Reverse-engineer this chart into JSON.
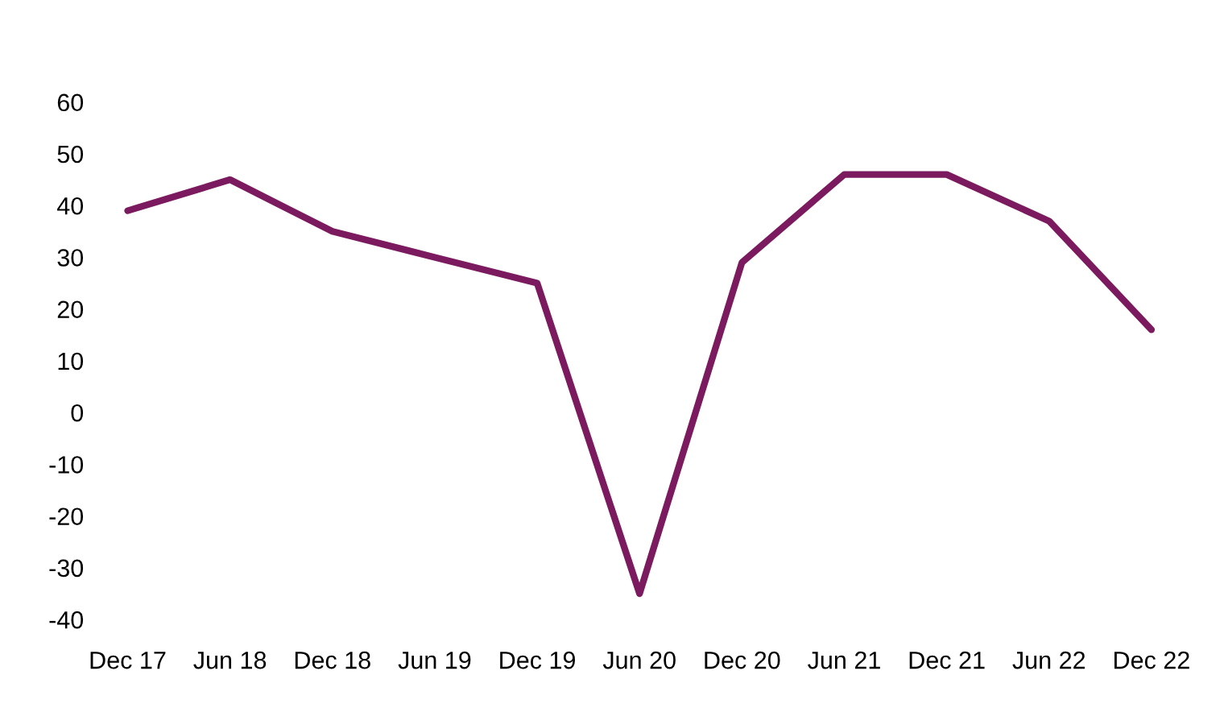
{
  "chart_data": {
    "type": "line",
    "categories": [
      "Dec 17",
      "Jun 18",
      "Dec 18",
      "Jun 19",
      "Dec 19",
      "Jun 20",
      "Dec 20",
      "Jun 21",
      "Dec 21",
      "Jun 22",
      "Dec 22"
    ],
    "series": [
      {
        "color": "#7b1a5e",
        "values": [
          39,
          45,
          35,
          30,
          25,
          -35,
          29,
          46,
          46,
          37,
          16
        ]
      }
    ],
    "ylim": [
      -40,
      60
    ],
    "yticks": [
      -40,
      -30,
      -20,
      -10,
      0,
      10,
      20,
      30,
      40,
      50,
      60
    ],
    "grid": false,
    "marker": "none",
    "line_style": "solid"
  }
}
